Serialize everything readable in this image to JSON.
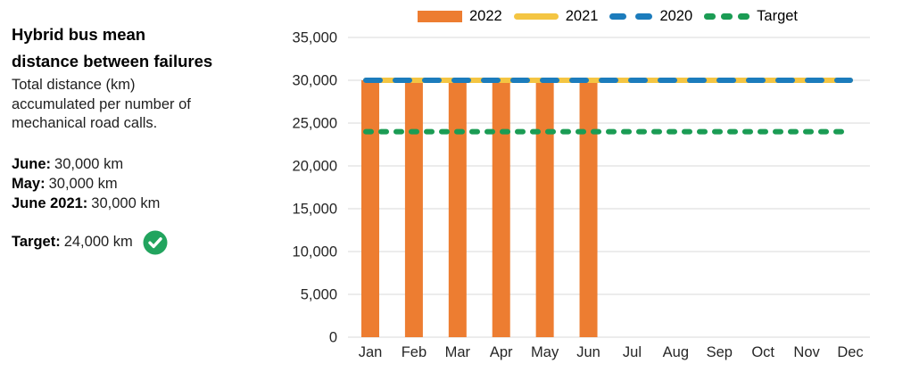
{
  "panel": {
    "title_lines": [
      "Hybrid bus mean",
      "distance between failures"
    ],
    "subtitle": "Total distance (km) accumulated per number of mechanical road calls.",
    "stats": [
      {
        "label": "June:",
        "value": "30,000 km"
      },
      {
        "label": "May:",
        "value": "30,000 km"
      },
      {
        "label": "June 2021:",
        "value": "30,000 km"
      }
    ],
    "target": {
      "label": "Target:",
      "value": "24,000 km",
      "status_icon": "check-circle-icon",
      "status_color": "#22A45E"
    }
  },
  "legend": {
    "items": [
      {
        "label": "2022",
        "marker": "bar",
        "color": "#ED7D31"
      },
      {
        "label": "2021",
        "marker": "line-solid",
        "color": "#F4C542"
      },
      {
        "label": "2020",
        "marker": "line-dashed",
        "color": "#1C7CBC"
      },
      {
        "label": "Target",
        "marker": "line-dashed-short",
        "color": "#1B9C54"
      }
    ]
  },
  "chart_data": {
    "type": "bar",
    "title": "Hybrid bus mean distance between failures",
    "xlabel": "",
    "ylabel": "",
    "categories": [
      "Jan",
      "Feb",
      "Mar",
      "Apr",
      "May",
      "Jun",
      "Jul",
      "Aug",
      "Sep",
      "Oct",
      "Nov",
      "Dec"
    ],
    "series": [
      {
        "name": "2022",
        "type": "bar",
        "color": "#ED7D31",
        "values": [
          30000,
          30000,
          30000,
          30000,
          30000,
          30000,
          null,
          null,
          null,
          null,
          null,
          null
        ]
      },
      {
        "name": "2021",
        "type": "line",
        "style": "solid",
        "color": "#F4C542",
        "values": [
          30000,
          30000,
          30000,
          30000,
          30000,
          30000,
          30000,
          30000,
          30000,
          30000,
          30000,
          30000
        ]
      },
      {
        "name": "2020",
        "type": "line",
        "style": "dashed",
        "color": "#1C7CBC",
        "values": [
          30000,
          30000,
          30000,
          30000,
          30000,
          30000,
          30000,
          30000,
          30000,
          30000,
          30000,
          30000
        ]
      },
      {
        "name": "Target",
        "type": "line",
        "style": "dashed-short",
        "color": "#1B9C54",
        "values": [
          24000,
          24000,
          24000,
          24000,
          24000,
          24000,
          24000,
          24000,
          24000,
          24000,
          24000,
          24000
        ]
      }
    ],
    "ylim": [
      0,
      35000
    ],
    "yticks": [
      0,
      5000,
      10000,
      15000,
      20000,
      25000,
      30000,
      35000
    ],
    "ytick_labels": [
      "0",
      "5,000",
      "10,000",
      "15,000",
      "20,000",
      "25,000",
      "30,000",
      "35,000"
    ],
    "grid": "horizontal",
    "gridline_color": "#D9D9D9",
    "legend_position": "top-right"
  }
}
